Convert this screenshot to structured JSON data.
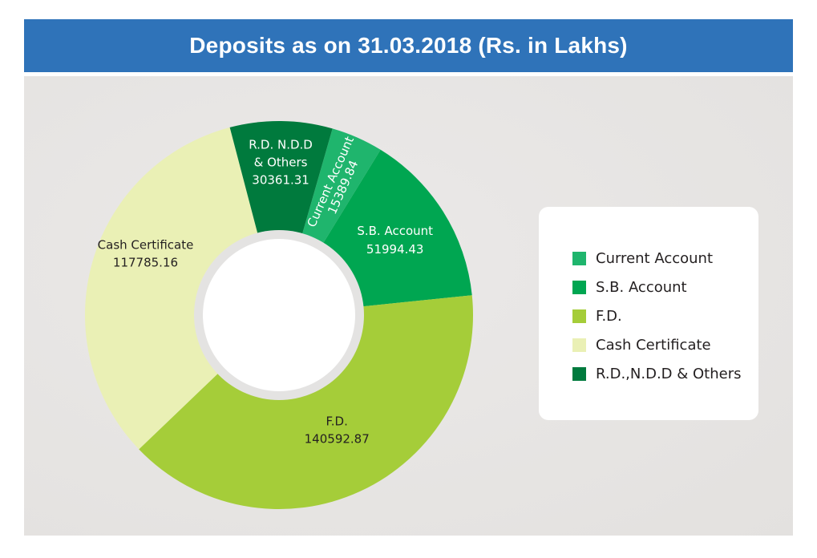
{
  "header": {
    "title": "Deposits as on 31.03.2018 (Rs. in Lakhs)"
  },
  "chart_data": {
    "type": "pie",
    "variant": "donut",
    "title": "Deposits as on 31.03.2018 (Rs. in Lakhs)",
    "slices": [
      {
        "key": "current_account",
        "value": 15389.84,
        "value_label": "15389.84",
        "slice_label": [
          "Current Account"
        ],
        "color": "#1fb56d",
        "label_color": "#ffffff"
      },
      {
        "key": "sb_account",
        "value": 51994.43,
        "value_label": "51994.43",
        "slice_label": [
          "S.B. Account"
        ],
        "color": "#00a651",
        "label_color": "#ffffff"
      },
      {
        "key": "fd",
        "value": 140592.87,
        "value_label": "140592.87",
        "slice_label": [
          "F.D."
        ],
        "color": "#a5cd39",
        "label_color": "#231f20"
      },
      {
        "key": "cash_certificate",
        "value": 117785.16,
        "value_label": "117785.16",
        "slice_label": [
          "Cash Certificate"
        ],
        "color": "#eaf0b5",
        "label_color": "#231f20"
      },
      {
        "key": "rd_ndd_others",
        "value": 30361.31,
        "value_label": "30361.31",
        "slice_label": [
          "R.D. N.D.D",
          "& Others"
        ],
        "color": "#007a3d",
        "label_color": "#ffffff"
      }
    ],
    "legend": {
      "position": "right",
      "items": [
        {
          "label": "Current Account",
          "color": "#1fb56d"
        },
        {
          "label": "S.B. Account",
          "color": "#00a651"
        },
        {
          "label": "F.D.",
          "color": "#a5cd39"
        },
        {
          "label": "Cash Certificate",
          "color": "#eaf0b5"
        },
        {
          "label": "R.D.,N.D.D & Others",
          "color": "#007a3d"
        }
      ]
    }
  }
}
